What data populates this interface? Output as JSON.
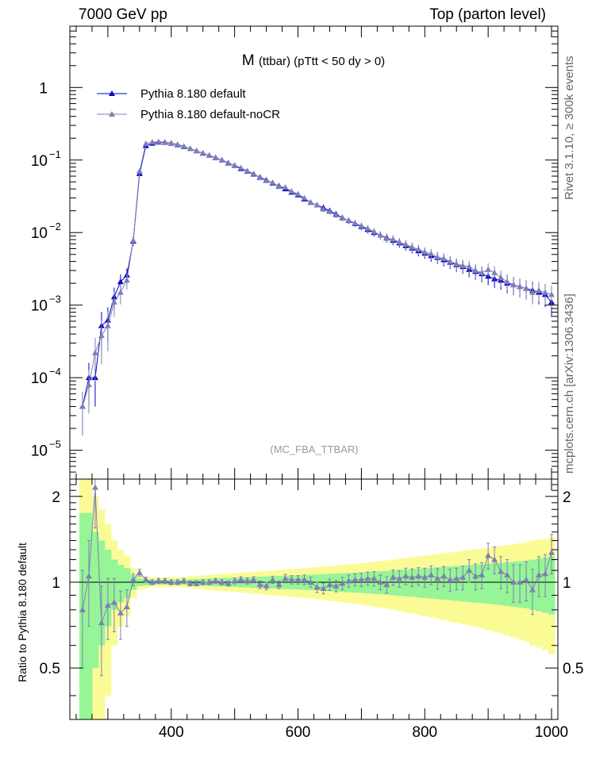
{
  "header": {
    "left": "7000 GeV pp",
    "right": "Top (parton level)"
  },
  "side_labels": {
    "rivet": "Rivet 3.1.10, ≥ 300k events",
    "mcplots": "mcplots.cern.ch [arXiv:1306.3436]"
  },
  "colors": {
    "series_1": "#0000cc",
    "series_2": "#7f7fb4",
    "band_inner": "#96f596",
    "band_outer": "#fbfb96"
  },
  "chart_data": [
    {
      "type": "line",
      "title": "M (ttbar) (pTtt < 50 dy > 0)",
      "title_main": "M",
      "title_sub": "(ttbar) (pTtt < 50 dy > 0)",
      "annotation": "(MC_FBA_TTBAR)",
      "xlabel": "",
      "ylabel": "",
      "xlim": [
        240,
        1010
      ],
      "ylim": [
        4e-06,
        7
      ],
      "yscale": "log",
      "y_ticks": [
        {
          "value": 1e-05,
          "base": "10",
          "exp": "−5"
        },
        {
          "value": 0.0001,
          "base": "10",
          "exp": "−4"
        },
        {
          "value": 0.001,
          "base": "10",
          "exp": "−3"
        },
        {
          "value": 0.01,
          "base": "10",
          "exp": "−2"
        },
        {
          "value": 0.1,
          "base": "10",
          "exp": "−1"
        },
        {
          "value": 1,
          "base": "1",
          "exp": ""
        }
      ],
      "legend_position": "top-left",
      "series": [
        {
          "name": "Pythia 8.180 default",
          "x": [
            260,
            270,
            280,
            290,
            300,
            310,
            320,
            330,
            340,
            350,
            360,
            370,
            380,
            390,
            400,
            410,
            420,
            430,
            440,
            450,
            460,
            470,
            480,
            490,
            500,
            510,
            520,
            530,
            540,
            550,
            560,
            570,
            580,
            590,
            600,
            610,
            620,
            630,
            640,
            650,
            660,
            670,
            680,
            690,
            700,
            710,
            720,
            730,
            740,
            750,
            760,
            770,
            780,
            790,
            800,
            810,
            820,
            830,
            840,
            850,
            860,
            870,
            880,
            890,
            900,
            910,
            920,
            930,
            940,
            950,
            960,
            970,
            980,
            990,
            1000
          ],
          "y": [
            4e-05,
            0.0001,
            0.0001,
            0.00052,
            0.00062,
            0.0013,
            0.0021,
            0.0026,
            0.0076,
            0.065,
            0.158,
            0.17,
            0.176,
            0.175,
            0.17,
            0.162,
            0.153,
            0.143,
            0.134,
            0.124,
            0.116,
            0.108,
            0.1,
            0.091,
            0.084,
            0.076,
            0.07,
            0.064,
            0.058,
            0.053,
            0.048,
            0.044,
            0.04,
            0.036,
            0.033,
            0.029,
            0.026,
            0.024,
            0.022,
            0.02,
            0.018,
            0.016,
            0.0146,
            0.0133,
            0.0121,
            0.011,
            0.01,
            0.0092,
            0.0085,
            0.0078,
            0.0072,
            0.0066,
            0.0061,
            0.0056,
            0.0052,
            0.0048,
            0.0045,
            0.0042,
            0.0039,
            0.0036,
            0.0034,
            0.0031,
            0.0029,
            0.0027,
            0.0025,
            0.0023,
            0.0022,
            0.002,
            0.0019,
            0.0018,
            0.0017,
            0.0016,
            0.0015,
            0.0014,
            0.0011
          ]
        },
        {
          "name": "Pythia 8.180 default-noCR",
          "x": [
            260,
            270,
            280,
            290,
            300,
            310,
            320,
            330,
            340,
            350,
            360,
            370,
            380,
            390,
            400,
            410,
            420,
            430,
            440,
            450,
            460,
            470,
            480,
            490,
            500,
            510,
            520,
            530,
            540,
            550,
            560,
            570,
            580,
            590,
            600,
            610,
            620,
            630,
            640,
            650,
            660,
            670,
            680,
            690,
            700,
            710,
            720,
            730,
            740,
            750,
            760,
            770,
            780,
            790,
            800,
            810,
            820,
            830,
            840,
            850,
            860,
            870,
            880,
            890,
            900,
            910,
            920,
            930,
            940,
            950,
            960,
            970,
            980,
            990,
            1000
          ],
          "y": [
            4e-05,
            8e-05,
            0.00022,
            0.00038,
            0.00052,
            0.0011,
            0.0015,
            0.0022,
            0.0078,
            0.07,
            0.168,
            0.176,
            0.179,
            0.177,
            0.172,
            0.164,
            0.155,
            0.143,
            0.133,
            0.125,
            0.116,
            0.107,
            0.1,
            0.09,
            0.085,
            0.078,
            0.071,
            0.065,
            0.057,
            0.052,
            0.049,
            0.043,
            0.042,
            0.037,
            0.034,
            0.03,
            0.026,
            0.024,
            0.021,
            0.0195,
            0.0175,
            0.0158,
            0.0148,
            0.0135,
            0.0124,
            0.0114,
            0.0103,
            0.0092,
            0.0083,
            0.0081,
            0.0074,
            0.0069,
            0.0063,
            0.0059,
            0.0054,
            0.0051,
            0.0046,
            0.0044,
            0.004,
            0.0037,
            0.0035,
            0.0034,
            0.003,
            0.0028,
            0.0031,
            0.0028,
            0.0024,
            0.0021,
            0.0019,
            0.0018,
            0.0017,
            0.0015,
            0.0016,
            0.0015,
            0.0014
          ]
        }
      ]
    },
    {
      "type": "line",
      "title": "",
      "xlabel": "",
      "ylabel": "Ratio to Pythia 8.180 default",
      "xlim": [
        240,
        1010
      ],
      "ylim": [
        0.33,
        2.3
      ],
      "y_ticks": [
        0.5,
        1,
        2
      ],
      "x_ticks": [
        400,
        600,
        800,
        1000
      ],
      "reference_line": 1,
      "band_x": [
        260,
        270,
        280,
        290,
        300,
        310,
        320,
        330,
        340,
        350,
        360,
        370,
        380,
        390,
        400,
        410,
        420,
        430,
        440,
        450,
        460,
        470,
        480,
        490,
        500,
        510,
        520,
        530,
        540,
        550,
        560,
        570,
        580,
        590,
        600,
        610,
        620,
        630,
        640,
        650,
        660,
        670,
        680,
        690,
        700,
        710,
        720,
        730,
        740,
        750,
        760,
        770,
        780,
        790,
        800,
        810,
        820,
        830,
        840,
        850,
        860,
        870,
        880,
        890,
        900,
        910,
        920,
        930,
        940,
        950,
        960,
        970,
        980,
        990,
        1000
      ],
      "band_inner": [
        0.75,
        0.75,
        0.5,
        0.4,
        0.3,
        0.2,
        0.15,
        0.12,
        0.06,
        0.03,
        0.025,
        0.02,
        0.02,
        0.02,
        0.02,
        0.02,
        0.022,
        0.024,
        0.026,
        0.028,
        0.03,
        0.032,
        0.034,
        0.036,
        0.038,
        0.04,
        0.042,
        0.044,
        0.046,
        0.048,
        0.05,
        0.052,
        0.054,
        0.056,
        0.058,
        0.06,
        0.062,
        0.064,
        0.067,
        0.07,
        0.072,
        0.075,
        0.078,
        0.08,
        0.083,
        0.086,
        0.09,
        0.093,
        0.096,
        0.1,
        0.104,
        0.108,
        0.112,
        0.116,
        0.12,
        0.124,
        0.128,
        0.132,
        0.136,
        0.14,
        0.144,
        0.148,
        0.152,
        0.156,
        0.16,
        0.165,
        0.17,
        0.175,
        0.18,
        0.185,
        0.19,
        0.2,
        0.21,
        0.22,
        0.23
      ],
      "band_outer": [
        1.5,
        1.5,
        1.0,
        0.8,
        0.6,
        0.4,
        0.3,
        0.24,
        0.12,
        0.06,
        0.05,
        0.04,
        0.04,
        0.04,
        0.04,
        0.04,
        0.044,
        0.048,
        0.052,
        0.056,
        0.06,
        0.064,
        0.068,
        0.072,
        0.076,
        0.08,
        0.084,
        0.088,
        0.092,
        0.096,
        0.1,
        0.104,
        0.108,
        0.112,
        0.116,
        0.12,
        0.124,
        0.128,
        0.134,
        0.14,
        0.144,
        0.15,
        0.156,
        0.16,
        0.166,
        0.172,
        0.18,
        0.186,
        0.192,
        0.2,
        0.208,
        0.216,
        0.224,
        0.232,
        0.24,
        0.248,
        0.256,
        0.264,
        0.272,
        0.28,
        0.288,
        0.296,
        0.304,
        0.312,
        0.32,
        0.33,
        0.34,
        0.35,
        0.36,
        0.37,
        0.38,
        0.4,
        0.41,
        0.42,
        0.44
      ],
      "series": [
        {
          "name": "Pythia 8.180 default-noCR",
          "x": [
            260,
            270,
            280,
            290,
            300,
            310,
            320,
            330,
            340,
            350,
            360,
            370,
            380,
            390,
            400,
            410,
            420,
            430,
            440,
            450,
            460,
            470,
            480,
            490,
            500,
            510,
            520,
            530,
            540,
            550,
            560,
            570,
            580,
            590,
            600,
            610,
            620,
            630,
            640,
            650,
            660,
            670,
            680,
            690,
            700,
            710,
            720,
            730,
            740,
            750,
            760,
            770,
            780,
            790,
            800,
            810,
            820,
            830,
            840,
            850,
            860,
            870,
            880,
            890,
            900,
            910,
            920,
            930,
            940,
            950,
            960,
            970,
            980,
            990,
            1000
          ],
          "y": [
            0.8,
            1.05,
            2.15,
            0.72,
            0.83,
            0.85,
            0.78,
            0.82,
            1.02,
            1.08,
            1.02,
            1.0,
            1.01,
            1.01,
            1.0,
            1.0,
            1.01,
            0.99,
            0.99,
            1.0,
            1.0,
            1.01,
            1.0,
            0.99,
            1.01,
            1.02,
            1.01,
            1.02,
            0.98,
            0.97,
            1.02,
            0.98,
            1.03,
            1.02,
            1.02,
            1.02,
            1.0,
            0.96,
            0.95,
            0.98,
            0.97,
            0.99,
            1.01,
            1.02,
            1.02,
            1.03,
            1.03,
            1.0,
            0.98,
            1.04,
            1.03,
            1.05,
            1.04,
            1.05,
            1.04,
            1.06,
            1.03,
            1.05,
            1.02,
            1.03,
            1.04,
            1.1,
            1.05,
            1.06,
            1.24,
            1.2,
            1.09,
            1.06,
            1.0,
            1.0,
            1.02,
            0.94,
            1.06,
            1.07,
            1.27
          ],
          "err": [
            0.3,
            0.35,
            0.6,
            0.25,
            0.2,
            0.18,
            0.15,
            0.12,
            0.05,
            0.03,
            0.02,
            0.02,
            0.02,
            0.02,
            0.02,
            0.02,
            0.02,
            0.02,
            0.02,
            0.02,
            0.02,
            0.02,
            0.02,
            0.02,
            0.025,
            0.025,
            0.025,
            0.025,
            0.03,
            0.03,
            0.03,
            0.03,
            0.035,
            0.035,
            0.035,
            0.04,
            0.04,
            0.04,
            0.04,
            0.045,
            0.045,
            0.05,
            0.05,
            0.05,
            0.055,
            0.055,
            0.06,
            0.06,
            0.065,
            0.065,
            0.07,
            0.07,
            0.075,
            0.075,
            0.08,
            0.08,
            0.085,
            0.085,
            0.09,
            0.09,
            0.1,
            0.1,
            0.11,
            0.11,
            0.13,
            0.13,
            0.14,
            0.14,
            0.15,
            0.15,
            0.16,
            0.17,
            0.17,
            0.18,
            0.2
          ]
        }
      ]
    }
  ]
}
